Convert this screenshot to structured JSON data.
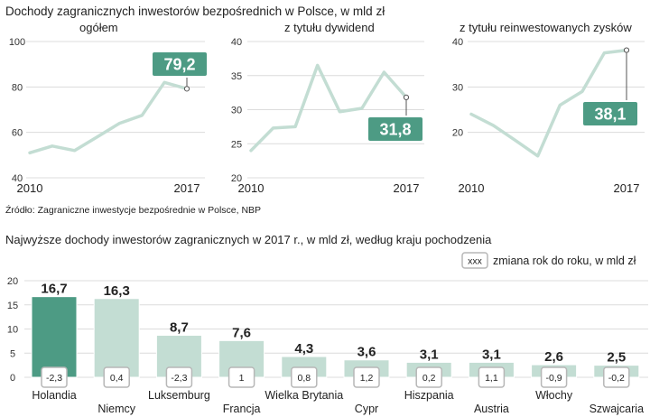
{
  "header": {
    "title": "Dochody zagranicznych inwestorów bezpośrednich w Polsce, w mld zł",
    "source": "Źródło: Zagraniczne inwestycje bezpośrednie w Polsce, NBP",
    "bar_title": "Najwyższe dochody inwestorów zagranicznych w 2017 r., w mld zł, według kraju pochodzenia",
    "legend_box": "xxx",
    "legend_text": "zmiana rok do roku, w mld zł"
  },
  "colors": {
    "line": "#c3ddd3",
    "grid": "#dcdcdc",
    "accent": "#4d9b84",
    "bar_light": "#c3ddd3",
    "box_border": "#b7b7b7"
  },
  "chart_data": [
    {
      "type": "line",
      "title": "ogółem",
      "x": [
        2010,
        2011,
        2012,
        2013,
        2014,
        2015,
        2016,
        2017
      ],
      "values": [
        51,
        54,
        52,
        58,
        64,
        67.5,
        82,
        79.2
      ],
      "ylim": [
        40,
        100
      ],
      "yticks": [
        40,
        60,
        80,
        100
      ],
      "xticks": [
        "2010",
        "2017"
      ],
      "highlight_label": "79,2"
    },
    {
      "type": "line",
      "title": "z tytułu dywidend",
      "x": [
        2010,
        2011,
        2012,
        2013,
        2014,
        2015,
        2016,
        2017
      ],
      "values": [
        24,
        27.3,
        27.5,
        36.5,
        29.7,
        30.2,
        35.5,
        31.8
      ],
      "ylim": [
        20,
        40
      ],
      "yticks": [
        20,
        25,
        30,
        35,
        40
      ],
      "xticks": [
        "2010",
        "2017"
      ],
      "highlight_label": "31,8"
    },
    {
      "type": "line",
      "title": "z tytułu reinwestowanych zysków",
      "x": [
        2010,
        2011,
        2012,
        2013,
        2014,
        2015,
        2016,
        2017
      ],
      "values": [
        24,
        21.5,
        18.2,
        14.8,
        26,
        29,
        37.5,
        38.1
      ],
      "ylim": [
        10,
        40
      ],
      "yticks": [
        20,
        30,
        40
      ],
      "xticks": [
        "2010",
        "2017"
      ],
      "highlight_label": "38,1"
    },
    {
      "type": "bar",
      "title": "Najwyższe dochody inwestorów zagranicznych w 2017 r., w mld zł, według kraju pochodzenia",
      "categories": [
        "Holandia",
        "Niemcy",
        "Luksemburg",
        "Francja",
        "Wielka Brytania",
        "Cypr",
        "Hiszpania",
        "Austria",
        "Włochy",
        "Szwajcaria"
      ],
      "values": [
        16.7,
        16.3,
        8.7,
        7.6,
        4.3,
        3.6,
        3.1,
        3.1,
        2.6,
        2.5
      ],
      "value_labels": [
        "16,7",
        "16,3",
        "8,7",
        "7,6",
        "4,3",
        "3,6",
        "3,1",
        "3,1",
        "2,6",
        "2,5"
      ],
      "change_labels": [
        "-2,3",
        "0,4",
        "-2,3",
        "1",
        "0,8",
        "1,2",
        "0,2",
        "1,1",
        "-0,9",
        "-0,2"
      ],
      "ylim": [
        0,
        20
      ],
      "yticks": [
        0,
        5,
        10,
        15,
        20
      ],
      "legend": "zmiana rok do roku, w mld zł"
    }
  ]
}
